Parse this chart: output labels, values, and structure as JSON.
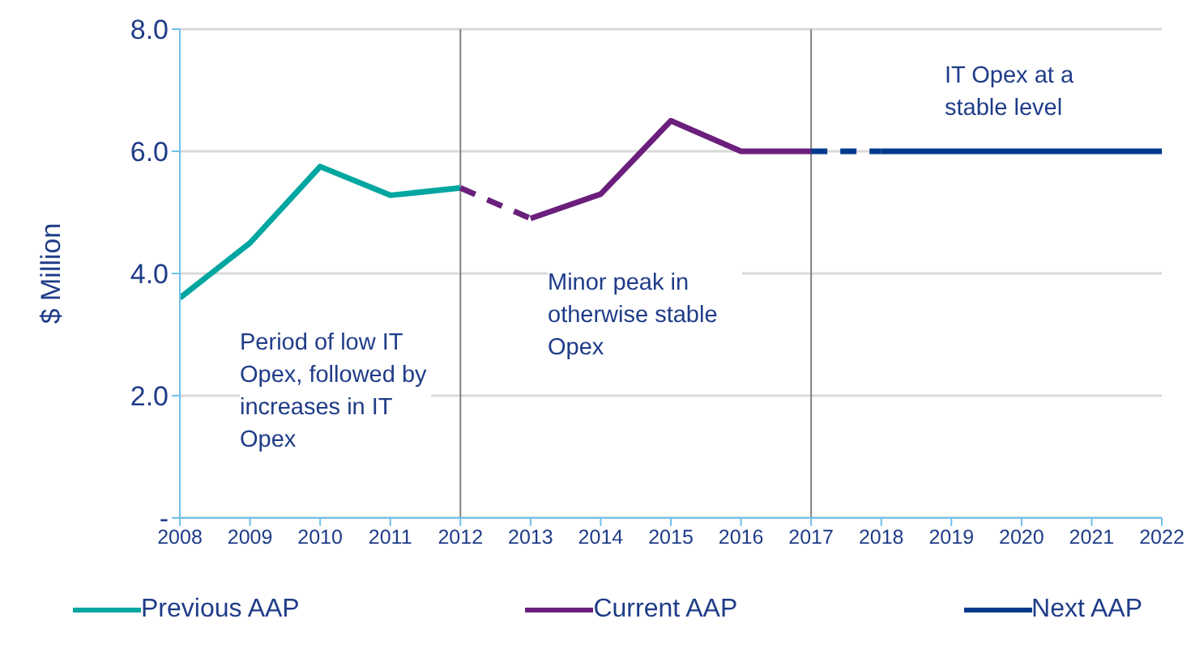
{
  "chart_data": {
    "type": "line",
    "ylabel": "$ Million",
    "categories": [
      "2008",
      "2009",
      "2010",
      "2011",
      "2012",
      "2013",
      "2014",
      "2015",
      "2016",
      "2017",
      "2018",
      "2019",
      "2020",
      "2021",
      "2022"
    ],
    "series": [
      {
        "name": "Previous AAP",
        "color": "#00a6a0",
        "values": [
          3.6,
          4.5,
          5.75,
          5.28,
          5.4,
          null,
          null,
          null,
          null,
          null,
          null,
          null,
          null,
          null,
          null
        ]
      },
      {
        "color": "#6b1f7c",
        "line_style": "dashed",
        "values": [
          null,
          null,
          null,
          null,
          5.4,
          4.9,
          null,
          null,
          null,
          null,
          null,
          null,
          null,
          null,
          null
        ]
      },
      {
        "name": "Current AAP",
        "color": "#6b1f7c",
        "values": [
          null,
          null,
          null,
          null,
          null,
          4.9,
          5.3,
          6.5,
          6.0,
          6.0,
          null,
          null,
          null,
          null,
          null
        ]
      },
      {
        "color": "#003a8c",
        "line_style": "dashed",
        "values": [
          null,
          null,
          null,
          null,
          null,
          null,
          null,
          null,
          null,
          6.0,
          6.0,
          null,
          null,
          null,
          null
        ]
      },
      {
        "name": "Next AAP",
        "color": "#003a8c",
        "values": [
          null,
          null,
          null,
          null,
          null,
          null,
          null,
          null,
          null,
          null,
          6.0,
          6.0,
          6.0,
          6.0,
          6.0
        ]
      }
    ],
    "ylim": [
      0,
      8
    ],
    "yticks": [
      {
        "value": 0,
        "label": "-"
      },
      {
        "value": 2,
        "label": "2.0"
      },
      {
        "value": 4,
        "label": "4.0"
      },
      {
        "value": 6,
        "label": "6.0"
      },
      {
        "value": 8,
        "label": "8.0"
      }
    ],
    "grid": "y",
    "legend": "bottom",
    "marker": "none",
    "line_style": "solid",
    "ref_lines": [
      {
        "axis": "x",
        "value": "2012",
        "color": "#808080"
      },
      {
        "axis": "x",
        "value": "2017",
        "color": "#808080"
      }
    ],
    "annotations": [
      "Period of low IT Opex, followed by increases in IT Opex",
      "Minor peak in otherwise stable Opex",
      "IT Opex at a stable level"
    ]
  }
}
